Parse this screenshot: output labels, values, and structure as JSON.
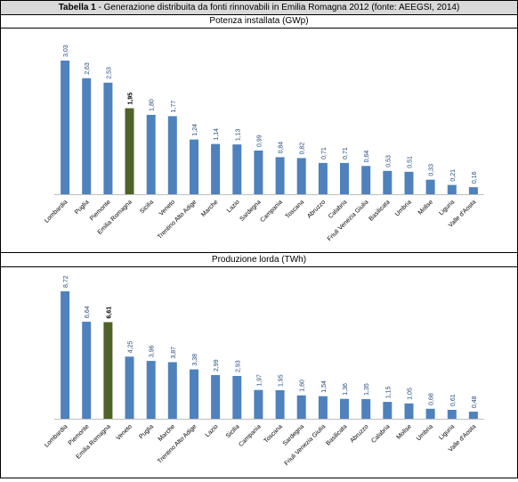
{
  "table": {
    "label_bold": "Tabella 1",
    "label_rest": " - Generazione distribuita da fonti rinnovabili in Emilia Romagna 2012 (fonte: AEEGSI, 2014)"
  },
  "colors": {
    "bar": "#4f81bd",
    "highlight": "#4f6228",
    "value_label": "#1f497d"
  },
  "chart_data": [
    {
      "type": "bar",
      "title": "Potenza installata (GWp)",
      "categories": [
        "Lombardia",
        "Puglia",
        "Piemonte",
        "Emilia Romagna",
        "Sicilia",
        "Veneto",
        "Trentino Alto Adige",
        "Marche",
        "Lazio",
        "Sardegna",
        "Campania",
        "Toscana",
        "Abruzzo",
        "Calabria",
        "Friuli Venezia Giulia",
        "Basilicata",
        "Umbria",
        "Molise",
        "Liguria",
        "Valle d'Aosta"
      ],
      "values": [
        3.03,
        2.63,
        2.53,
        1.95,
        1.8,
        1.77,
        1.24,
        1.14,
        1.13,
        0.99,
        0.84,
        0.82,
        0.71,
        0.71,
        0.64,
        0.53,
        0.51,
        0.33,
        0.21,
        0.16
      ],
      "value_labels": [
        "3,03",
        "2,63",
        "2,53",
        "1,95",
        "1,80",
        "1,77",
        "1,24",
        "1,14",
        "1,13",
        "0,99",
        "0,84",
        "0,82",
        "0,71",
        "0,71",
        "0,64",
        "0,53",
        "0,51",
        "0,33",
        "0,21",
        "0,16"
      ],
      "highlight": "Emilia Romagna"
    },
    {
      "type": "bar",
      "title": "Produzione lorda (TWh)",
      "categories": [
        "Lombardia",
        "Piemonte",
        "Emilia Romagna",
        "Veneto",
        "Puglia",
        "Marche",
        "Trentino Alto Adige",
        "Lazio",
        "Sicilia",
        "Campania",
        "Toscana",
        "Sardegna",
        "Friuli Venezia Giulia",
        "Basilicata",
        "Abruzzo",
        "Calabria",
        "Molise",
        "Umbria",
        "Liguria",
        "Valle d'Aosta"
      ],
      "values": [
        8.72,
        6.64,
        6.61,
        4.25,
        3.96,
        3.87,
        3.38,
        2.99,
        2.93,
        1.97,
        1.95,
        1.6,
        1.54,
        1.36,
        1.35,
        1.15,
        1.05,
        0.68,
        0.61,
        0.48
      ],
      "value_labels": [
        "8,72",
        "6,64",
        "6,61",
        "4,25",
        "3,96",
        "3,87",
        "3,38",
        "2,99",
        "2,93",
        "1,97",
        "1,95",
        "1,60",
        "1,54",
        "1,36",
        "1,35",
        "1,15",
        "1,05",
        "0,68",
        "0,61",
        "0,48"
      ],
      "highlight": "Emilia Romagna"
    }
  ]
}
